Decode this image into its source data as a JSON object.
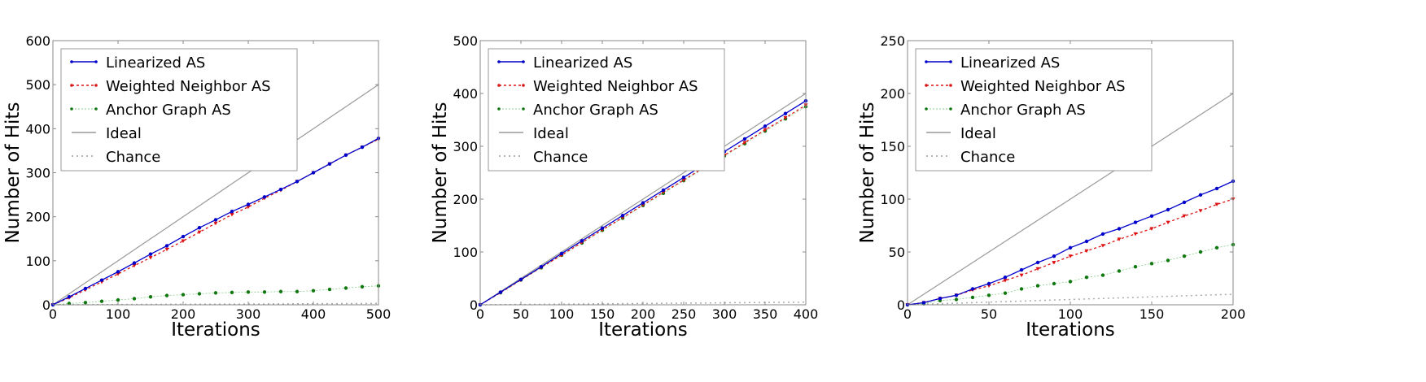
{
  "colors": {
    "linearized": "#0000cc",
    "weighted": "#dd1111",
    "anchor": "#117711",
    "ideal": "#999999",
    "chance": "#aaaaaa"
  },
  "legend": [
    "Linearized AS",
    "Weighted Neighbor AS",
    "Anchor Graph AS",
    "Ideal",
    "Chance"
  ],
  "chart_data": [
    {
      "type": "line",
      "xlabel": "Iterations",
      "ylabel": "Number of Hits",
      "xlim": [
        0,
        500
      ],
      "ylim": [
        0,
        600
      ],
      "xticks": [
        0,
        100,
        200,
        300,
        400,
        500
      ],
      "yticks": [
        0,
        100,
        200,
        300,
        400,
        500,
        600
      ],
      "legend_position": "top-left",
      "x": [
        0,
        25,
        50,
        75,
        100,
        125,
        150,
        175,
        200,
        225,
        250,
        275,
        300,
        325,
        350,
        375,
        400,
        425,
        450,
        475,
        500
      ],
      "series": [
        {
          "name": "Linearized AS",
          "values": [
            0,
            18,
            37,
            56,
            75,
            95,
            115,
            134,
            155,
            175,
            193,
            212,
            228,
            245,
            262,
            280,
            300,
            320,
            340,
            358,
            378
          ]
        },
        {
          "name": "Weighted Neighbor AS",
          "values": [
            0,
            16,
            34,
            52,
            70,
            89,
            107,
            126,
            145,
            165,
            185,
            205,
            222,
            242,
            260,
            280,
            300,
            320,
            340,
            358,
            376
          ]
        },
        {
          "name": "Anchor Graph AS",
          "values": [
            0,
            3,
            5,
            8,
            11,
            14,
            18,
            21,
            23,
            25,
            27,
            28,
            29,
            29,
            30,
            30,
            32,
            35,
            38,
            41,
            43
          ]
        },
        {
          "name": "Ideal",
          "values": [
            0,
            25,
            50,
            75,
            100,
            125,
            150,
            175,
            200,
            225,
            250,
            275,
            300,
            325,
            350,
            375,
            400,
            425,
            450,
            475,
            500
          ]
        },
        {
          "name": "Chance",
          "values": [
            0,
            0.15,
            0.3,
            0.45,
            0.6,
            0.75,
            0.9,
            1.05,
            1.2,
            1.35,
            1.5,
            1.65,
            1.8,
            1.95,
            2.1,
            2.25,
            2.4,
            2.55,
            2.7,
            2.85,
            3
          ]
        }
      ]
    },
    {
      "type": "line",
      "xlabel": "Iterations",
      "ylabel": "Number of Hits",
      "xlim": [
        0,
        400
      ],
      "ylim": [
        0,
        500
      ],
      "xticks": [
        0,
        50,
        100,
        150,
        200,
        250,
        300,
        350,
        400
      ],
      "yticks": [
        0,
        100,
        200,
        300,
        400,
        500
      ],
      "legend_position": "top-left",
      "x": [
        0,
        25,
        50,
        75,
        100,
        125,
        150,
        175,
        200,
        225,
        250,
        275,
        300,
        325,
        350,
        375,
        400
      ],
      "series": [
        {
          "name": "Linearized AS",
          "values": [
            0,
            24,
            48,
            72,
            97,
            121,
            145,
            169,
            193,
            217,
            241,
            265,
            290,
            314,
            338,
            362,
            386
          ]
        },
        {
          "name": "Weighted Neighbor AS",
          "values": [
            0,
            23,
            47,
            71,
            94,
            118,
            142,
            165,
            189,
            213,
            236,
            260,
            283,
            307,
            331,
            354,
            378
          ]
        },
        {
          "name": "Anchor Graph AS",
          "values": [
            0,
            23,
            47,
            70,
            94,
            117,
            141,
            164,
            188,
            211,
            235,
            258,
            282,
            305,
            329,
            352,
            375
          ]
        },
        {
          "name": "Ideal",
          "values": [
            0,
            25,
            50,
            75,
            100,
            125,
            150,
            175,
            200,
            225,
            250,
            275,
            300,
            325,
            350,
            375,
            400
          ]
        },
        {
          "name": "Chance",
          "values": [
            0,
            0.3,
            0.6,
            0.9,
            1.2,
            1.6,
            1.9,
            2.2,
            2.5,
            2.8,
            3.1,
            3.4,
            3.8,
            4.1,
            4.4,
            4.7,
            5
          ]
        }
      ]
    },
    {
      "type": "line",
      "xlabel": "Iterations",
      "ylabel": "Number of Hits",
      "xlim": [
        0,
        200
      ],
      "ylim": [
        0,
        250
      ],
      "xticks": [
        0,
        50,
        100,
        150,
        200
      ],
      "yticks": [
        0,
        50,
        100,
        150,
        200,
        250
      ],
      "legend_position": "top-left",
      "x": [
        0,
        10,
        20,
        30,
        40,
        50,
        60,
        70,
        80,
        90,
        100,
        110,
        120,
        130,
        140,
        150,
        160,
        170,
        180,
        190,
        200
      ],
      "series": [
        {
          "name": "Linearized AS",
          "values": [
            0,
            2,
            6,
            9,
            15,
            20,
            26,
            33,
            40,
            46,
            54,
            60,
            67,
            72,
            78,
            84,
            90,
            97,
            104,
            110,
            117
          ]
        },
        {
          "name": "Weighted Neighbor AS",
          "values": [
            0,
            2,
            6,
            9,
            14,
            18,
            23,
            28,
            34,
            40,
            46,
            51,
            56,
            62,
            67,
            72,
            78,
            84,
            89,
            95,
            100
          ]
        },
        {
          "name": "Anchor Graph AS",
          "values": [
            0,
            1,
            4,
            5,
            7,
            9,
            11,
            15,
            18,
            20,
            22,
            26,
            28,
            32,
            36,
            39,
            42,
            46,
            50,
            54,
            57
          ]
        },
        {
          "name": "Ideal",
          "values": [
            0,
            10,
            20,
            30,
            40,
            50,
            60,
            70,
            80,
            90,
            100,
            110,
            120,
            130,
            140,
            150,
            160,
            170,
            180,
            190,
            200
          ]
        },
        {
          "name": "Chance",
          "values": [
            0,
            0.5,
            1,
            1.5,
            2,
            2.5,
            3,
            3.5,
            4,
            4.5,
            5,
            5.5,
            6,
            6.5,
            7,
            7.5,
            8,
            8.5,
            9,
            9.5,
            10
          ]
        }
      ]
    }
  ]
}
